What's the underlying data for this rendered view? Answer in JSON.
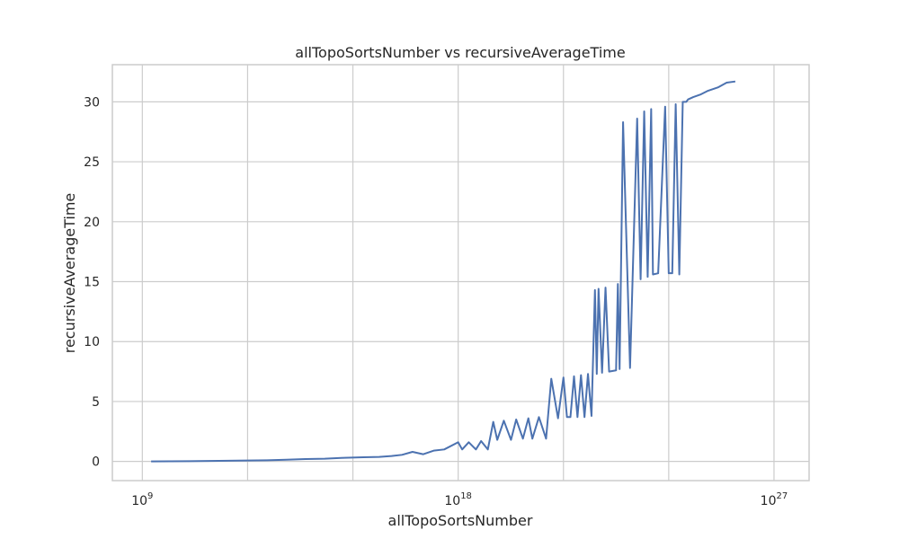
{
  "chart_data": {
    "type": "line",
    "title": "allTopoSortsNumber vs recursiveAverageTime",
    "xlabel": "allTopoSortsNumber",
    "ylabel": "recursiveAverageTime",
    "xscale": "log",
    "xlim": [
      140000000.0,
      1e+28
    ],
    "ylim": [
      -1.6,
      33.1
    ],
    "grid": true,
    "x_ticks": [
      {
        "value": 1000000000.0,
        "base": "10",
        "exp": "9"
      },
      {
        "value": 1e+18,
        "base": "10",
        "exp": "18"
      },
      {
        "value": 1e+27,
        "base": "10",
        "exp": "27"
      }
    ],
    "y_ticks": [
      0,
      5,
      10,
      15,
      20,
      25,
      30
    ],
    "series": [
      {
        "color": "#4c72b0",
        "x": [
          1780000000.0,
          6300000000.0,
          22400000000.0,
          79000000000.0,
          282000000000.0,
          1000000000000.0,
          3550000000000.0,
          12600000000000.0,
          44700000000000.0,
          158000000000000.0,
          560000000000000.0,
          2000000000000000.0,
          5600000000000000.0,
          1.26e+16,
          2.51e+16,
          5e+16,
          1e+17,
          2e+17,
          4e+17,
          1e+18,
          1.3e+18,
          2e+18,
          3.2e+18,
          4.5e+18,
          7e+18,
          1e+19,
          1.3e+19,
          2e+19,
          3.2e+19,
          4.5e+19,
          7e+19,
          1e+20,
          1.3e+20,
          2e+20,
          3.2e+20,
          4.5e+20,
          7e+20,
          1e+21,
          1.26e+21,
          1.58e+21,
          2e+21,
          2.51e+21,
          3.16e+21,
          3.98e+21,
          5e+21,
          6.3e+21,
          7.9e+21,
          8.9e+21,
          1e+22,
          1.26e+22,
          1.58e+22,
          2e+22,
          3.16e+22,
          3.55e+22,
          3.98e+22,
          5e+22,
          7.9e+22,
          1.26e+23,
          1.58e+23,
          2e+23,
          2.51e+23,
          3.16e+23,
          3.55e+23,
          5e+23,
          7.9e+23,
          1e+24,
          1.26e+24,
          1.58e+24,
          2e+24,
          2.51e+24,
          3.16e+24,
          3.55e+24,
          5e+24,
          7.9e+24,
          1.26e+25,
          2.51e+25,
          4.47e+25,
          7.9e+25
        ],
        "y": [
          0.0,
          0.01,
          0.02,
          0.04,
          0.06,
          0.08,
          0.1,
          0.14,
          0.2,
          0.23,
          0.3,
          0.35,
          0.38,
          0.45,
          0.55,
          0.8,
          0.6,
          0.9,
          1.0,
          1.6,
          1.0,
          1.6,
          1.0,
          1.7,
          1.0,
          3.3,
          1.8,
          3.4,
          1.8,
          3.5,
          1.9,
          3.6,
          1.9,
          3.7,
          1.9,
          6.9,
          3.6,
          7.0,
          3.7,
          3.7,
          7.1,
          3.7,
          7.2,
          3.7,
          7.3,
          3.8,
          14.3,
          7.3,
          14.4,
          7.4,
          14.5,
          7.5,
          7.6,
          14.8,
          7.7,
          28.3,
          7.8,
          28.6,
          15.2,
          29.2,
          15.4,
          29.4,
          15.6,
          15.7,
          29.6,
          15.7,
          15.7,
          29.8,
          15.6,
          30.0,
          30.0,
          30.2,
          30.4,
          30.6,
          30.9,
          31.2,
          31.6,
          31.7
        ]
      }
    ]
  }
}
